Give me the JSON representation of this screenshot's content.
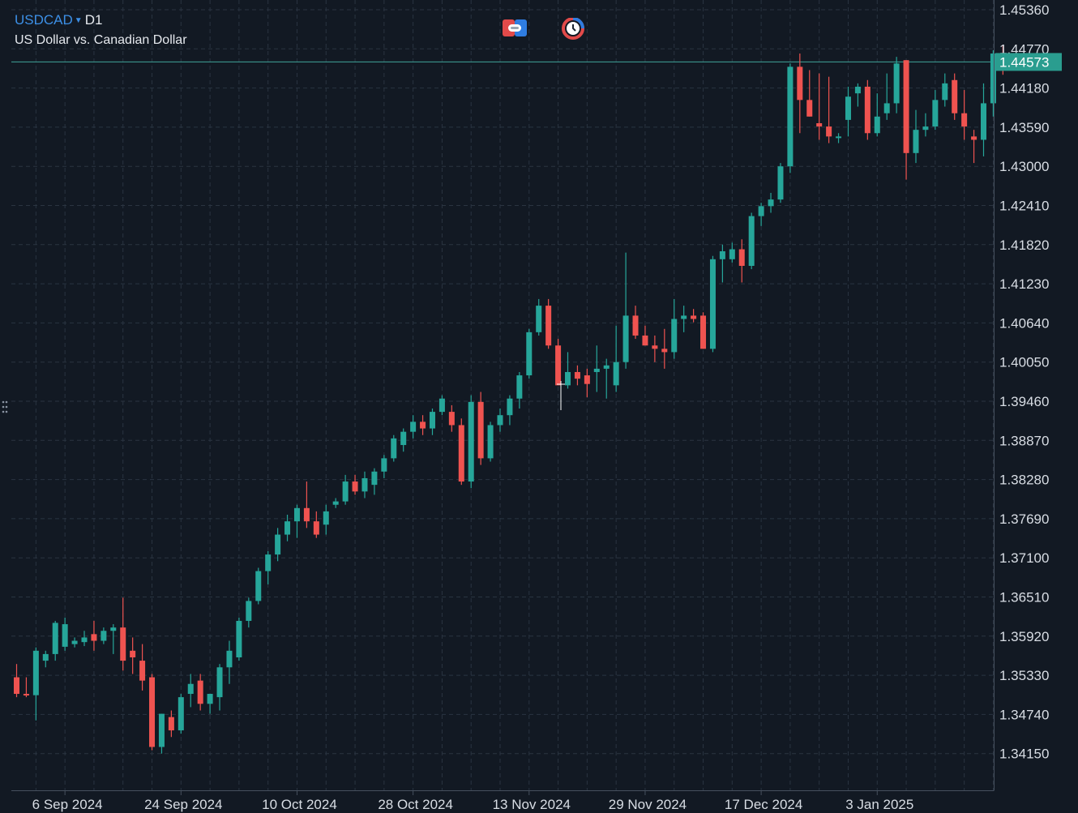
{
  "header": {
    "symbol": "USDCAD",
    "timeframe": "D1",
    "description": "US Dollar vs. Canadian Dollar"
  },
  "colors": {
    "background": "#121923",
    "grid": "#2a3441",
    "up": "#26a69a",
    "down": "#ef5350",
    "price_line": "#3fa39a",
    "axis_text": "#d8dde4",
    "price_tag_bg": "#2a9d8f",
    "symbol_accent": "#3c8fe6"
  },
  "toolbar": {
    "left_icon": "trade-panel-icon",
    "right_icon": "clock-icon"
  },
  "chart_data": {
    "type": "candlestick",
    "symbol": "USDCAD",
    "timeframe": "D1",
    "ylim": [
      1.4085,
      1.4577
    ],
    "y_ticks": [
      "1.45360",
      "1.44770",
      "1.44180",
      "1.43590",
      "1.43000",
      "1.42410",
      "1.41820",
      "1.41230",
      "1.40640",
      "1.40050",
      "1.39460",
      "1.38870",
      "1.38280",
      "1.37690",
      "1.37100",
      "1.36510",
      "1.35920",
      "1.35330",
      "1.34740",
      "1.34150"
    ],
    "x_labels": [
      {
        "label": "6 Sep 2024",
        "index": 5
      },
      {
        "label": "24 Sep 2024",
        "index": 17
      },
      {
        "label": "10 Oct 2024",
        "index": 29
      },
      {
        "label": "28 Oct 2024",
        "index": 41
      },
      {
        "label": "13 Nov 2024",
        "index": 53
      },
      {
        "label": "29 Nov 2024",
        "index": 65
      },
      {
        "label": "17 Dec 2024",
        "index": 77
      },
      {
        "label": "3 Jan 2025",
        "index": 89
      }
    ],
    "current_price": "1.44573",
    "current_price_value": 1.44573,
    "grid": true,
    "candles": [
      [
        1.353,
        1.355,
        1.35,
        1.3505
      ],
      [
        1.3505,
        1.353,
        1.35,
        1.3503
      ],
      [
        1.3503,
        1.3575,
        1.3465,
        1.357
      ],
      [
        1.3555,
        1.357,
        1.3545,
        1.3565
      ],
      [
        1.3565,
        1.3615,
        1.3555,
        1.3612
      ],
      [
        1.3576,
        1.362,
        1.357,
        1.361
      ],
      [
        1.358,
        1.359,
        1.3575,
        1.3585
      ],
      [
        1.3583,
        1.36,
        1.3577,
        1.359
      ],
      [
        1.3595,
        1.3615,
        1.357,
        1.3585
      ],
      [
        1.3585,
        1.3605,
        1.358,
        1.36
      ],
      [
        1.36,
        1.361,
        1.3565,
        1.3605
      ],
      [
        1.3605,
        1.365,
        1.354,
        1.3555
      ],
      [
        1.357,
        1.359,
        1.3535,
        1.356
      ],
      [
        1.3555,
        1.358,
        1.351,
        1.3525
      ],
      [
        1.353,
        1.3535,
        1.342,
        1.3425
      ],
      [
        1.3425,
        1.3475,
        1.3415,
        1.3475
      ],
      [
        1.347,
        1.348,
        1.344,
        1.345
      ],
      [
        1.345,
        1.3505,
        1.3445,
        1.35
      ],
      [
        1.3505,
        1.3535,
        1.3485,
        1.352
      ],
      [
        1.3525,
        1.3535,
        1.348,
        1.349
      ],
      [
        1.349,
        1.3505,
        1.3475,
        1.3505
      ],
      [
        1.35,
        1.355,
        1.348,
        1.3545
      ],
      [
        1.3545,
        1.3585,
        1.352,
        1.357
      ],
      [
        1.356,
        1.362,
        1.3555,
        1.3615
      ],
      [
        1.3615,
        1.365,
        1.3605,
        1.3645
      ],
      [
        1.3645,
        1.3695,
        1.364,
        1.369
      ],
      [
        1.369,
        1.372,
        1.367,
        1.3715
      ],
      [
        1.3715,
        1.3755,
        1.3705,
        1.3745
      ],
      [
        1.3745,
        1.3775,
        1.3735,
        1.3765
      ],
      [
        1.3765,
        1.379,
        1.374,
        1.3785
      ],
      [
        1.3785,
        1.3825,
        1.3755,
        1.3765
      ],
      [
        1.3765,
        1.378,
        1.374,
        1.3745
      ],
      [
        1.376,
        1.379,
        1.3745,
        1.378
      ],
      [
        1.379,
        1.38,
        1.3785,
        1.3795
      ],
      [
        1.3795,
        1.3835,
        1.379,
        1.3825
      ],
      [
        1.3825,
        1.3835,
        1.3805,
        1.381
      ],
      [
        1.381,
        1.384,
        1.38,
        1.383
      ],
      [
        1.382,
        1.3845,
        1.3805,
        1.384
      ],
      [
        1.384,
        1.3865,
        1.383,
        1.386
      ],
      [
        1.386,
        1.3895,
        1.3855,
        1.389
      ],
      [
        1.388,
        1.3905,
        1.387,
        1.39
      ],
      [
        1.39,
        1.3925,
        1.389,
        1.3915
      ],
      [
        1.3915,
        1.3925,
        1.3895,
        1.3905
      ],
      [
        1.3905,
        1.3935,
        1.3895,
        1.393
      ],
      [
        1.393,
        1.3955,
        1.3925,
        1.395
      ],
      [
        1.393,
        1.394,
        1.39,
        1.391
      ],
      [
        1.391,
        1.392,
        1.382,
        1.3825
      ],
      [
        1.3825,
        1.3955,
        1.3815,
        1.3945
      ],
      [
        1.3945,
        1.396,
        1.385,
        1.386
      ],
      [
        1.386,
        1.3915,
        1.3855,
        1.391
      ],
      [
        1.391,
        1.3935,
        1.39,
        1.3925
      ],
      [
        1.3925,
        1.3955,
        1.391,
        1.395
      ],
      [
        1.395,
        1.399,
        1.3935,
        1.3985
      ],
      [
        1.3985,
        1.4055,
        1.398,
        1.405
      ],
      [
        1.405,
        1.41,
        1.4045,
        1.409
      ],
      [
        1.409,
        1.41,
        1.4025,
        1.403
      ],
      [
        1.403,
        1.404,
        1.397,
        1.397
      ],
      [
        1.397,
        1.402,
        1.3965,
        1.399
      ],
      [
        1.399,
        1.4,
        1.397,
        1.398
      ],
      [
        1.3985,
        1.3995,
        1.3952,
        1.3972
      ],
      [
        1.399,
        1.403,
        1.396,
        1.3995
      ],
      [
        1.3995,
        1.401,
        1.395,
        1.4
      ],
      [
        1.397,
        1.406,
        1.396,
        1.4005
      ],
      [
        1.4005,
        1.417,
        1.3995,
        1.4075
      ],
      [
        1.4075,
        1.409,
        1.404,
        1.4045
      ],
      [
        1.4045,
        1.406,
        1.403,
        1.403
      ],
      [
        1.403,
        1.4045,
        1.4005,
        1.4025
      ],
      [
        1.4025,
        1.4055,
        1.3995,
        1.402
      ],
      [
        1.402,
        1.41,
        1.401,
        1.407
      ],
      [
        1.407,
        1.409,
        1.405,
        1.4075
      ],
      [
        1.4075,
        1.4085,
        1.4065,
        1.407
      ],
      [
        1.4075,
        1.408,
        1.4025,
        1.4025
      ],
      [
        1.4025,
        1.4165,
        1.402,
        1.416
      ],
      [
        1.416,
        1.4182,
        1.4125,
        1.4172
      ],
      [
        1.416,
        1.4185,
        1.4155,
        1.4175
      ],
      [
        1.4175,
        1.419,
        1.4125,
        1.415
      ],
      [
        1.415,
        1.423,
        1.4145,
        1.4225
      ],
      [
        1.4225,
        1.4245,
        1.421,
        1.424
      ],
      [
        1.424,
        1.426,
        1.423,
        1.425
      ],
      [
        1.425,
        1.4305,
        1.4245,
        1.43
      ],
      [
        1.43,
        1.4455,
        1.429,
        1.445
      ],
      [
        1.445,
        1.447,
        1.435,
        1.44
      ],
      [
        1.44,
        1.4445,
        1.4375,
        1.4375
      ],
      [
        1.4365,
        1.444,
        1.434,
        1.436
      ],
      [
        1.436,
        1.4435,
        1.4335,
        1.4345
      ],
      [
        1.4345,
        1.435,
        1.4335,
        1.4345
      ],
      [
        1.437,
        1.442,
        1.4345,
        1.4405
      ],
      [
        1.441,
        1.4425,
        1.439,
        1.442
      ],
      [
        1.442,
        1.443,
        1.434,
        1.435
      ],
      [
        1.435,
        1.441,
        1.4345,
        1.4375
      ],
      [
        1.438,
        1.444,
        1.437,
        1.4395
      ],
      [
        1.4395,
        1.4465,
        1.438,
        1.4455
      ],
      [
        1.446,
        1.446,
        1.428,
        1.432
      ],
      [
        1.432,
        1.4385,
        1.4305,
        1.4355
      ],
      [
        1.4355,
        1.438,
        1.4345,
        1.436
      ],
      [
        1.436,
        1.4415,
        1.4355,
        1.44
      ],
      [
        1.44,
        1.444,
        1.439,
        1.4425
      ],
      [
        1.443,
        1.444,
        1.437,
        1.438
      ],
      [
        1.438,
        1.4415,
        1.434,
        1.436
      ],
      [
        1.4345,
        1.4355,
        1.4305,
        1.434
      ],
      [
        1.434,
        1.4425,
        1.4315,
        1.4395
      ],
      [
        1.4395,
        1.4475,
        1.4375,
        1.447
      ],
      [
        1.4463,
        1.4483,
        1.4438,
        1.4457
      ]
    ]
  }
}
